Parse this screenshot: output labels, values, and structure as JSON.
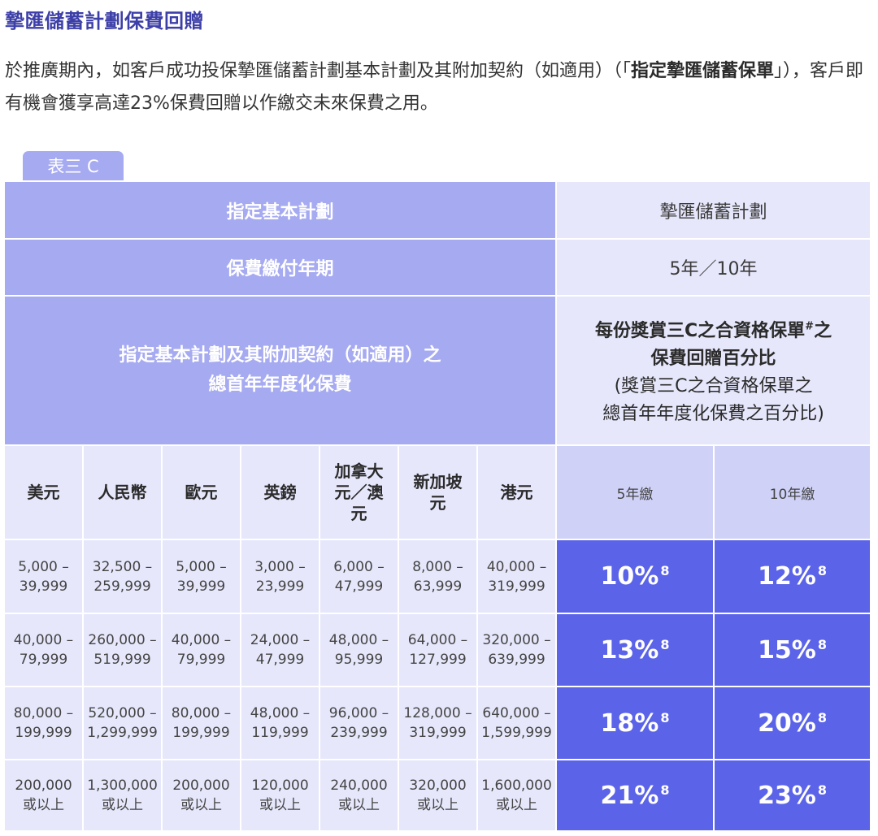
{
  "title": "摯匯儲蓄計劃保費回贈",
  "intro": {
    "part1": "於推廣期內，如客戶成功投保摯匯儲蓄計劃基本計劃及其附加契約（如適用）（「",
    "bold": "指定摯匯儲蓄保單",
    "part2": "」），客戶即有機會獲享高達23%保費回贈以作繳交未來保費之用。"
  },
  "table": {
    "tab_label": "表三 C",
    "row1": {
      "label": "指定基本計劃",
      "value": "摯匯儲蓄計劃"
    },
    "row2": {
      "label": "保費繳付年期",
      "value": "5年／10年"
    },
    "row3": {
      "label_line1": "指定基本計劃及其附加契約（如適用）之",
      "label_line2": "總首年年度化保費",
      "value_bold_line1": "每份獎賞三C之合資格保單",
      "value_hash": "#",
      "value_bold_line1_end": "之",
      "value_bold_line2": "保費回贈百分比",
      "value_line3": "(獎賞三C之合資格保單之",
      "value_line4": "總首年年度化保費之百分比)"
    },
    "currencies": [
      "美元",
      "人民幣",
      "歐元",
      "英鎊",
      "加拿大元／澳元",
      "新加坡元",
      "港元"
    ],
    "period_headers": [
      "5年繳",
      "10年繳"
    ],
    "rows": [
      {
        "ranges": [
          [
            "5,000 –",
            "39,999"
          ],
          [
            "32,500 –",
            "259,999"
          ],
          [
            "5,000 –",
            "39,999"
          ],
          [
            "3,000 –",
            "23,999"
          ],
          [
            "6,000 –",
            "47,999"
          ],
          [
            "8,000 –",
            "63,999"
          ],
          [
            "40,000 –",
            "319,999"
          ]
        ],
        "pct5": "10%",
        "pct10": "12%",
        "note": "8"
      },
      {
        "ranges": [
          [
            "40,000 –",
            "79,999"
          ],
          [
            "260,000 –",
            "519,999"
          ],
          [
            "40,000 –",
            "79,999"
          ],
          [
            "24,000 –",
            "47,999"
          ],
          [
            "48,000 –",
            "95,999"
          ],
          [
            "64,000 –",
            "127,999"
          ],
          [
            "320,000 –",
            "639,999"
          ]
        ],
        "pct5": "13%",
        "pct10": "15%",
        "note": "8"
      },
      {
        "ranges": [
          [
            "80,000 –",
            "199,999"
          ],
          [
            "520,000 –",
            "1,299,999"
          ],
          [
            "80,000 –",
            "199,999"
          ],
          [
            "48,000 –",
            "119,999"
          ],
          [
            "96,000 –",
            "239,999"
          ],
          [
            "128,000 –",
            "319,999"
          ],
          [
            "640,000 –",
            "1,599,999"
          ]
        ],
        "pct5": "18%",
        "pct10": "20%",
        "note": "8"
      },
      {
        "ranges": [
          [
            "200,000",
            "或以上"
          ],
          [
            "1,300,000",
            "或以上"
          ],
          [
            "200,000",
            "或以上"
          ],
          [
            "120,000",
            "或以上"
          ],
          [
            "240,000",
            "或以上"
          ],
          [
            "320,000",
            "或以上"
          ],
          [
            "1,600,000",
            "或以上"
          ]
        ],
        "pct5": "21%",
        "pct10": "23%",
        "note": "8"
      }
    ]
  },
  "colors": {
    "title": "#3d3fa8",
    "header_bg": "#a6aaf1",
    "light_bg": "#e6e7fb",
    "period_bg": "#cfd1f7",
    "accent_bg": "#5b63e8"
  }
}
